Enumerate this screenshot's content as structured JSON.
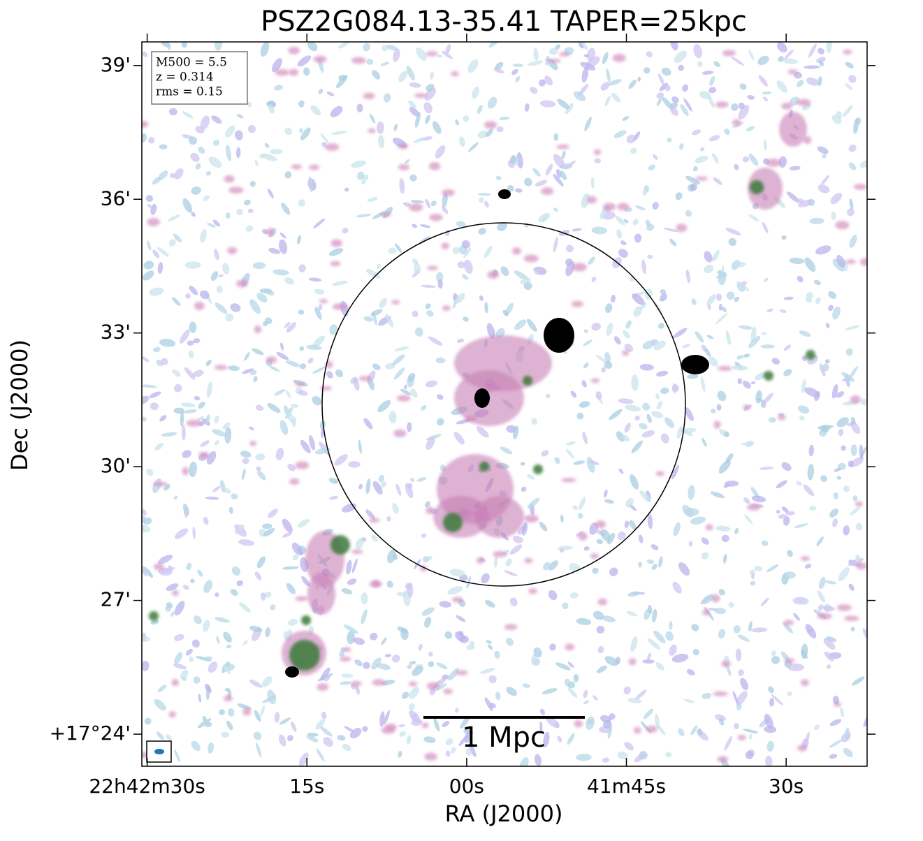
{
  "chart_data": {
    "type": "image",
    "title": "PSZ2G084.13-35.41 TAPER=25kpc",
    "x_label": "RA (J2000)",
    "y_label": "Dec (J2000)",
    "xlim": [
      90.5,
      22.4
    ],
    "ylim": [
      23.28,
      39.53
    ],
    "xticks": [
      {
        "value": 90,
        "label": "22h42m30s"
      },
      {
        "value": 75,
        "label": "15s"
      },
      {
        "value": 60,
        "label": "00s"
      },
      {
        "value": 45,
        "label": "41m45s"
      },
      {
        "value": 30,
        "label": "30s"
      }
    ],
    "yticks": [
      {
        "value": 24,
        "label": "+17°24'"
      },
      {
        "value": 27,
        "label": "27'"
      },
      {
        "value": 30,
        "label": "30'"
      },
      {
        "value": 33,
        "label": "33'"
      },
      {
        "value": 36,
        "label": "36'"
      },
      {
        "value": 39,
        "label": "39'"
      }
    ],
    "info_box": [
      "M500 = 5.5",
      "z = 0.314",
      "rms = 0.15"
    ],
    "scale_bar_label": "1 Mpc"
  }
}
